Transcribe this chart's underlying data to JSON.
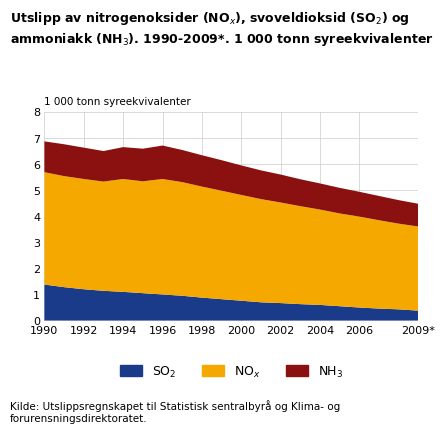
{
  "title": "Utslipp av nitrogenoksider (NO$_x$), svoveldioksid (SO$_2$) og\nammoniakk (NH$_3$). 1990-2009*. 1 000 tonn syreekvivalenter",
  "ylabel": "1 000 tonn syreekvivalenter",
  "source": "Kilde: Utslippsregnskapet til Statistisk sentralbyrå og Klima- og\nforurensningsdirektoratet.",
  "years": [
    1990,
    1991,
    1992,
    1993,
    1994,
    1995,
    1996,
    1997,
    1998,
    1999,
    2000,
    2001,
    2002,
    2003,
    2004,
    2005,
    2006,
    2007,
    2008,
    2009
  ],
  "SO2": [
    1.38,
    1.28,
    1.2,
    1.14,
    1.1,
    1.05,
    1.0,
    0.95,
    0.88,
    0.82,
    0.76,
    0.7,
    0.67,
    0.63,
    0.6,
    0.55,
    0.5,
    0.46,
    0.43,
    0.38
  ],
  "NOx": [
    4.3,
    4.25,
    4.22,
    4.18,
    4.32,
    4.28,
    4.42,
    4.35,
    4.25,
    4.15,
    4.05,
    3.95,
    3.85,
    3.75,
    3.65,
    3.55,
    3.48,
    3.38,
    3.28,
    3.22
  ],
  "NH3": [
    1.18,
    1.22,
    1.2,
    1.17,
    1.22,
    1.25,
    1.28,
    1.23,
    1.2,
    1.17,
    1.13,
    1.1,
    1.07,
    1.03,
    1.0,
    0.98,
    0.95,
    0.93,
    0.9,
    0.87
  ],
  "SO2_color": "#1a3a8a",
  "NOx_color": "#f5a800",
  "NH3_color": "#8b1010",
  "ylim": [
    0,
    8
  ],
  "yticks": [
    0,
    1,
    2,
    3,
    4,
    5,
    6,
    7,
    8
  ],
  "xtick_years": [
    1990,
    1992,
    1994,
    1996,
    1998,
    2000,
    2002,
    2004,
    2006,
    2009
  ],
  "xtick_labels": [
    "1990",
    "1992",
    "1994",
    "1996",
    "1998",
    "2000",
    "2002",
    "2004",
    "2006",
    "2009*"
  ],
  "background_color": "#ffffff",
  "grid_color": "#cccccc",
  "title_fontsize": 9.0,
  "tick_fontsize": 8.0,
  "ylabel_fontsize": 7.5,
  "source_fontsize": 7.5,
  "legend_fontsize": 9.0
}
